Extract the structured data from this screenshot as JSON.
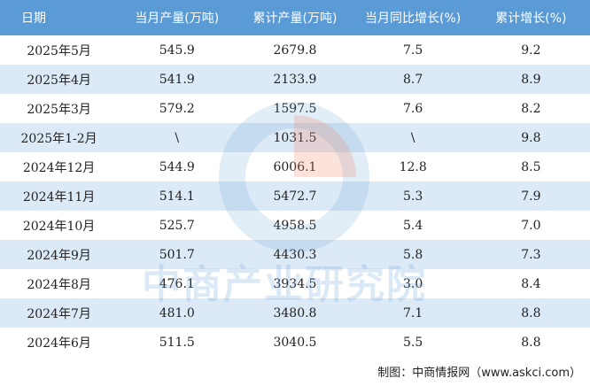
{
  "table": {
    "header": [
      "日期",
      "当月产量(万吨)",
      "累计产量(万吨)",
      "当月同比增长(%)",
      "累计增长(%)"
    ],
    "rows": [
      [
        "2025年5月",
        "545.9",
        "2679.8",
        "7.5",
        "9.2"
      ],
      [
        "2025年4月",
        "541.9",
        "2133.9",
        "8.7",
        "8.9"
      ],
      [
        "2025年3月",
        "579.2",
        "1597.5",
        "7.6",
        "8.2"
      ],
      [
        "2025年1-2月",
        "\\",
        "1031.5",
        "\\",
        "9.8"
      ],
      [
        "2024年12月",
        "544.9",
        "6006.1",
        "12.8",
        "8.5"
      ],
      [
        "2024年11月",
        "514.1",
        "5472.7",
        "5.3",
        "7.9"
      ],
      [
        "2024年10月",
        "525.7",
        "4958.5",
        "5.4",
        "7.0"
      ],
      [
        "2024年9月",
        "501.7",
        "4430.3",
        "5.8",
        "7.3"
      ],
      [
        "2024年8月",
        "476.1",
        "3934.5",
        "3.0",
        "8.4"
      ],
      [
        "2024年7月",
        "481.0",
        "3480.8",
        "7.1",
        "8.8"
      ],
      [
        "2024年6月",
        "511.5",
        "3040.5",
        "5.5",
        "8.8"
      ]
    ]
  },
  "watermark": "中商产业研究院",
  "footer": "制图：中商情报网（www.askci.com）"
}
